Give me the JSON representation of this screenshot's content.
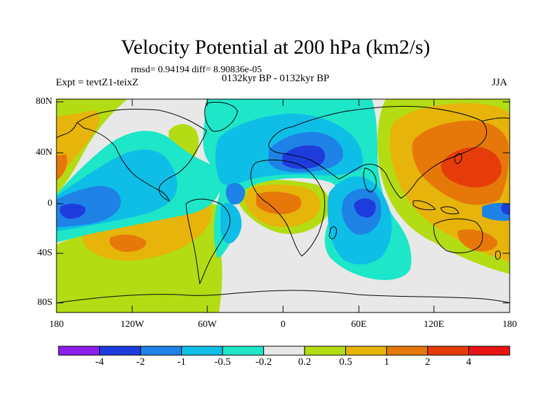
{
  "header": {
    "title": "Velocity Potential at 200 hPa (km2/s)",
    "stats": "rmsd= 0.94194 diff= 8.90836e-05",
    "experiment": "Expt = tevtZ1-teixZ",
    "period": "0132kyr BP - 0132kyr BP",
    "season": "JJA"
  },
  "axes": {
    "y_ticks": [
      "80N",
      "40N",
      "0",
      "40S",
      "80S"
    ],
    "x_ticks": [
      "180",
      "120W",
      "60W",
      "0",
      "60E",
      "120E",
      "180"
    ]
  },
  "colorbar": {
    "colors": [
      "#8c1ef0",
      "#1e3cdc",
      "#1e82e6",
      "#0fbee6",
      "#1ee6c8",
      "#e8e8e8",
      "#b4dc14",
      "#e6b40a",
      "#e6780a",
      "#e63c0a",
      "#e61414"
    ],
    "labels": [
      "-4",
      "-2",
      "-1",
      "-0.5",
      "-0.2",
      "0.2",
      "0.5",
      "1",
      "2",
      "4"
    ]
  }
}
